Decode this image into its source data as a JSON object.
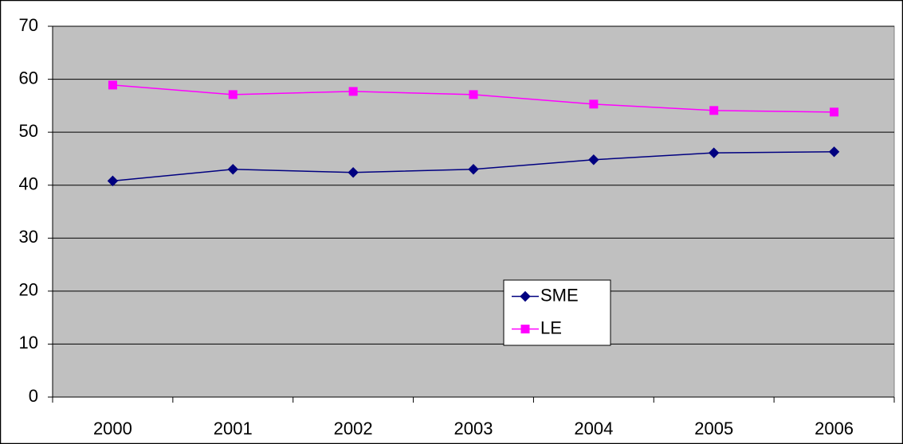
{
  "chart_data": {
    "type": "line",
    "categories": [
      "2000",
      "2001",
      "2002",
      "2003",
      "2004",
      "2005",
      "2006"
    ],
    "series": [
      {
        "name": "SME",
        "color": "#000080",
        "marker": "diamond",
        "values": [
          40.8,
          43.0,
          42.4,
          43.0,
          44.8,
          46.1,
          46.3
        ]
      },
      {
        "name": "LE",
        "color": "#ff00ff",
        "marker": "square",
        "values": [
          58.9,
          57.1,
          57.7,
          57.1,
          55.3,
          54.1,
          53.8
        ]
      }
    ],
    "ylim": [
      0,
      70
    ],
    "yticks": [
      0,
      10,
      20,
      30,
      40,
      50,
      60,
      70
    ],
    "grid": true
  }
}
